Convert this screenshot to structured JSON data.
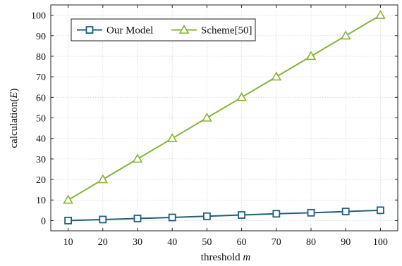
{
  "chart_data": {
    "type": "line",
    "x": [
      10,
      20,
      30,
      40,
      50,
      60,
      70,
      80,
      90,
      100
    ],
    "series": [
      {
        "name": "Our Model",
        "values": [
          0,
          0.5,
          1.0,
          1.5,
          2.1,
          2.7,
          3.3,
          3.8,
          4.4,
          5.0
        ],
        "color": "#1f5f7a",
        "marker": "square"
      },
      {
        "name": "Scheme[50]",
        "values": [
          10,
          20,
          30,
          40,
          50,
          60,
          70,
          80,
          90,
          100
        ],
        "color": "#86b33a",
        "marker": "triangle"
      }
    ],
    "xlabel_text": "threshold ",
    "xlabel_var": "m",
    "ylabel_text": "calculation(",
    "ylabel_var": "E",
    "ylabel_close": ")",
    "xticks": [
      10,
      20,
      30,
      40,
      50,
      60,
      70,
      80,
      90,
      100
    ],
    "yticks": [
      0,
      10,
      20,
      30,
      40,
      50,
      60,
      70,
      80,
      90,
      100
    ],
    "xlim": [
      5,
      105
    ],
    "ylim": [
      -5,
      105
    ],
    "grid": true,
    "legend_placement": "top-left"
  }
}
